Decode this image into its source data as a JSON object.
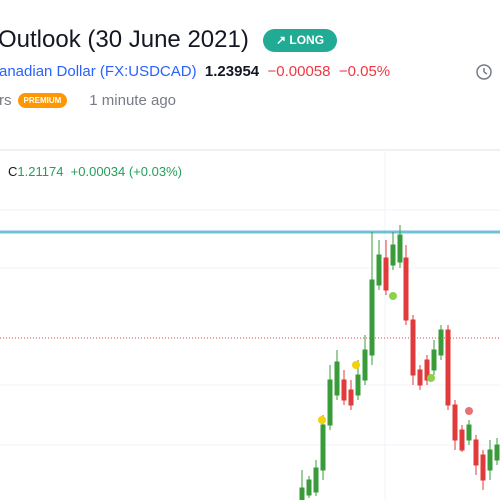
{
  "header": {
    "title": "Outlook (30 June 2021)",
    "badge": "LONG",
    "symbol_name": "anadian Dollar",
    "symbol": "(FX:USDCAD)",
    "price": "1.23954",
    "change": "−0.00058",
    "change_pct": "−0.05%",
    "author": "rs",
    "author_badge": "PREMIUM",
    "time": "1 minute ago"
  },
  "chart": {
    "ohlc_label": "C",
    "close": "1.21174",
    "close_change": "+0.00034 (+0.03%)"
  }
}
